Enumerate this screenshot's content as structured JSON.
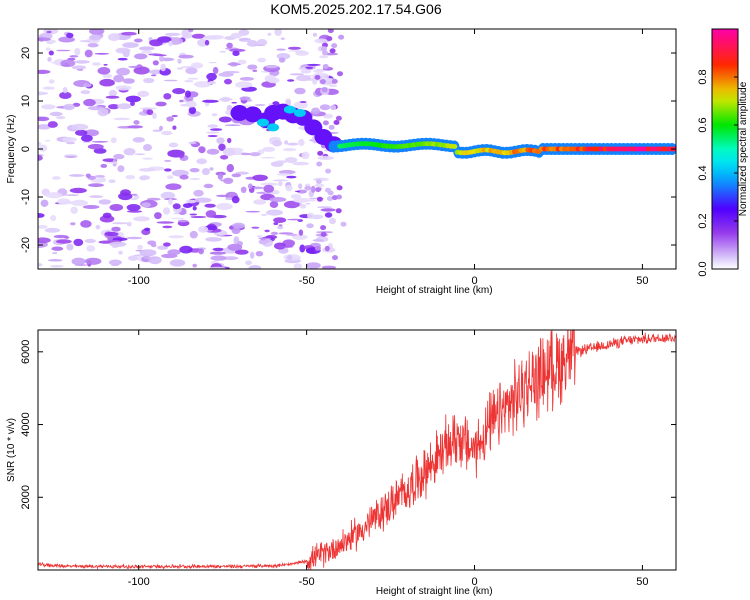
{
  "page_title": "KOM5.2025.202.17.54.G06",
  "chart_data": [
    {
      "type": "heatmap",
      "title": "KOM5.2025.202.17.54.G06",
      "xlabel": "Height of straight line (km)",
      "ylabel": "Frequency (Hz)",
      "xlim": [
        -130,
        60
      ],
      "ylim": [
        -25,
        25
      ],
      "x_ticks": [
        -100,
        -50,
        0,
        50
      ],
      "y_ticks": [
        20,
        10,
        0,
        -10,
        -20
      ],
      "colorbar": {
        "label": "Normalized spectral amplitude",
        "range": [
          0,
          1
        ],
        "ticks": [
          "0.0",
          "0.2",
          "0.4",
          "0.6",
          "0.8"
        ],
        "colormap": "rainbow (white to violet, blue, cyan, green, yellow, red, magenta)"
      },
      "features": [
        {
          "region": "height -130 to -45 km",
          "description": "scattered low-amplitude noise across all frequencies"
        },
        {
          "region": "height -70 to -45 km",
          "frequency_hz": 7,
          "amplitude": 0.3
        },
        {
          "region": "height -42 to 60 km",
          "frequency_hz": 0,
          "amplitude": 1.0
        }
      ]
    },
    {
      "type": "line",
      "xlabel": "Height of straight line (km)",
      "ylabel": "SNR (10 * v/v)",
      "xlim": [
        -130,
        60
      ],
      "ylim": [
        0,
        6600
      ],
      "x_ticks": [
        -100,
        -50,
        0,
        50
      ],
      "y_ticks": [
        2000,
        4000,
        6000
      ],
      "color": "#ee3333",
      "x": [
        -130,
        -120,
        -110,
        -100,
        -90,
        -80,
        -70,
        -60,
        -55,
        -50,
        -45,
        -40,
        -35,
        -30,
        -25,
        -20,
        -15,
        -10,
        -5,
        -2,
        0,
        5,
        10,
        15,
        20,
        25,
        30,
        35,
        40,
        45,
        50,
        55,
        60
      ],
      "values": [
        150,
        100,
        100,
        90,
        100,
        100,
        100,
        120,
        150,
        250,
        450,
        700,
        1000,
        1400,
        1800,
        2200,
        2700,
        3200,
        3700,
        3400,
        3300,
        4000,
        4500,
        5000,
        5400,
        5700,
        6000,
        6100,
        6200,
        6300,
        6350,
        6380,
        6400
      ]
    }
  ]
}
